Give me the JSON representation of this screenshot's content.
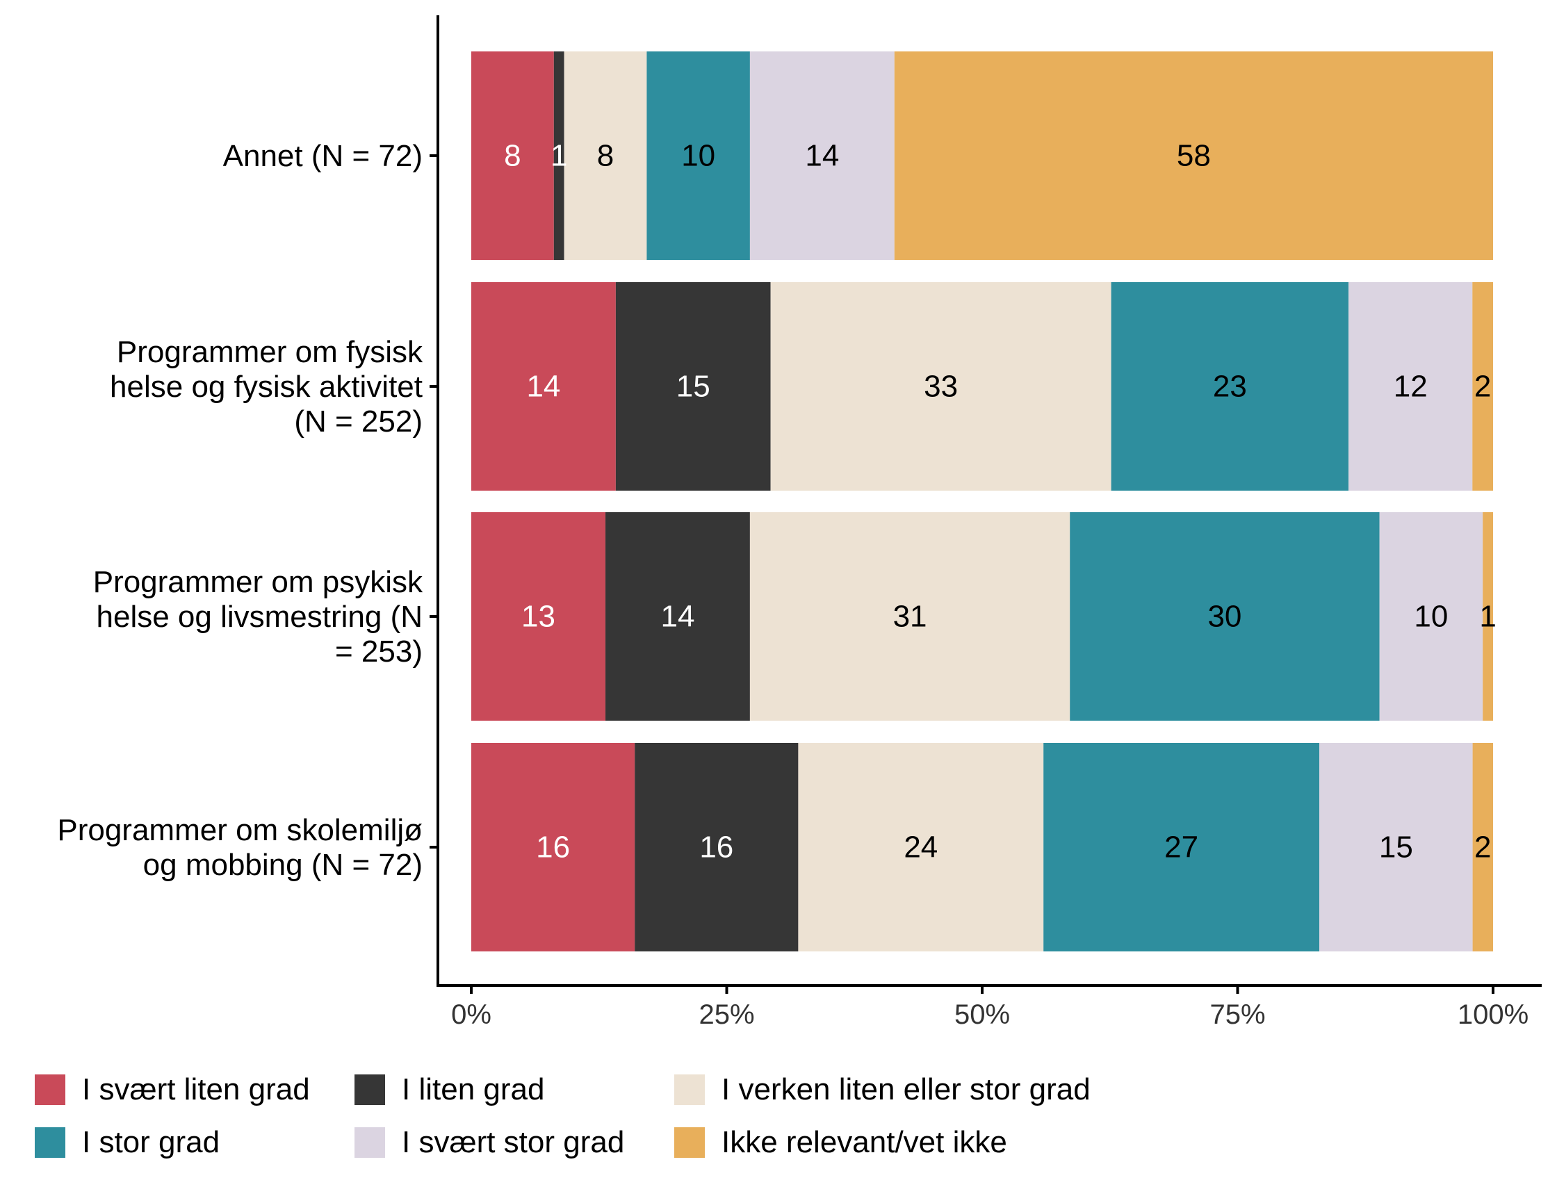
{
  "chart_data": {
    "type": "bar",
    "orientation": "horizontal",
    "stacked": true,
    "categories": [
      "Annet (N = 72)",
      "Programmer om fysisk helse og fysisk aktivitet (N = 252)",
      "Programmer om psykisk helse og livsmestring (N = 253)",
      "Programmer om skolemiljø og mobbing (N = 72)"
    ],
    "category_lines": [
      [
        "Annet (N = 72)"
      ],
      [
        "Programmer om fysisk",
        "helse og fysisk aktivitet",
        "(N = 252)"
      ],
      [
        "Programmer om psykisk",
        "helse og livsmestring (N",
        "= 253)"
      ],
      [
        "Programmer om skolemiljø",
        "og mobbing (N = 72)"
      ]
    ],
    "series": [
      {
        "name": "I svært liten grad",
        "color": "#C94A59",
        "label_color": "#ffffff",
        "values": [
          8,
          14,
          13,
          16
        ]
      },
      {
        "name": "I liten grad",
        "color": "#363636",
        "label_color": "#ffffff",
        "values": [
          1,
          15,
          14,
          16
        ]
      },
      {
        "name": "I verken liten eller stor grad",
        "color": "#EDE2D3",
        "label_color": "#000000",
        "values": [
          8,
          33,
          31,
          24
        ]
      },
      {
        "name": "I stor grad",
        "color": "#2E8E9E",
        "label_color": "#000000",
        "values": [
          10,
          23,
          30,
          27
        ]
      },
      {
        "name": "I svært stor grad",
        "color": "#DBD4E1",
        "label_color": "#000000",
        "values": [
          14,
          12,
          10,
          15
        ]
      },
      {
        "name": "Ikke relevant/vet ikke",
        "color": "#E8AF5B",
        "label_color": "#000000",
        "values": [
          58,
          2,
          1,
          2
        ]
      }
    ],
    "x_ticks": [
      "0%",
      "25%",
      "50%",
      "75%",
      "100%"
    ],
    "xlim": [
      0,
      100
    ],
    "xlabel": "",
    "ylabel": "",
    "grid": false,
    "legend_position": "bottom"
  }
}
